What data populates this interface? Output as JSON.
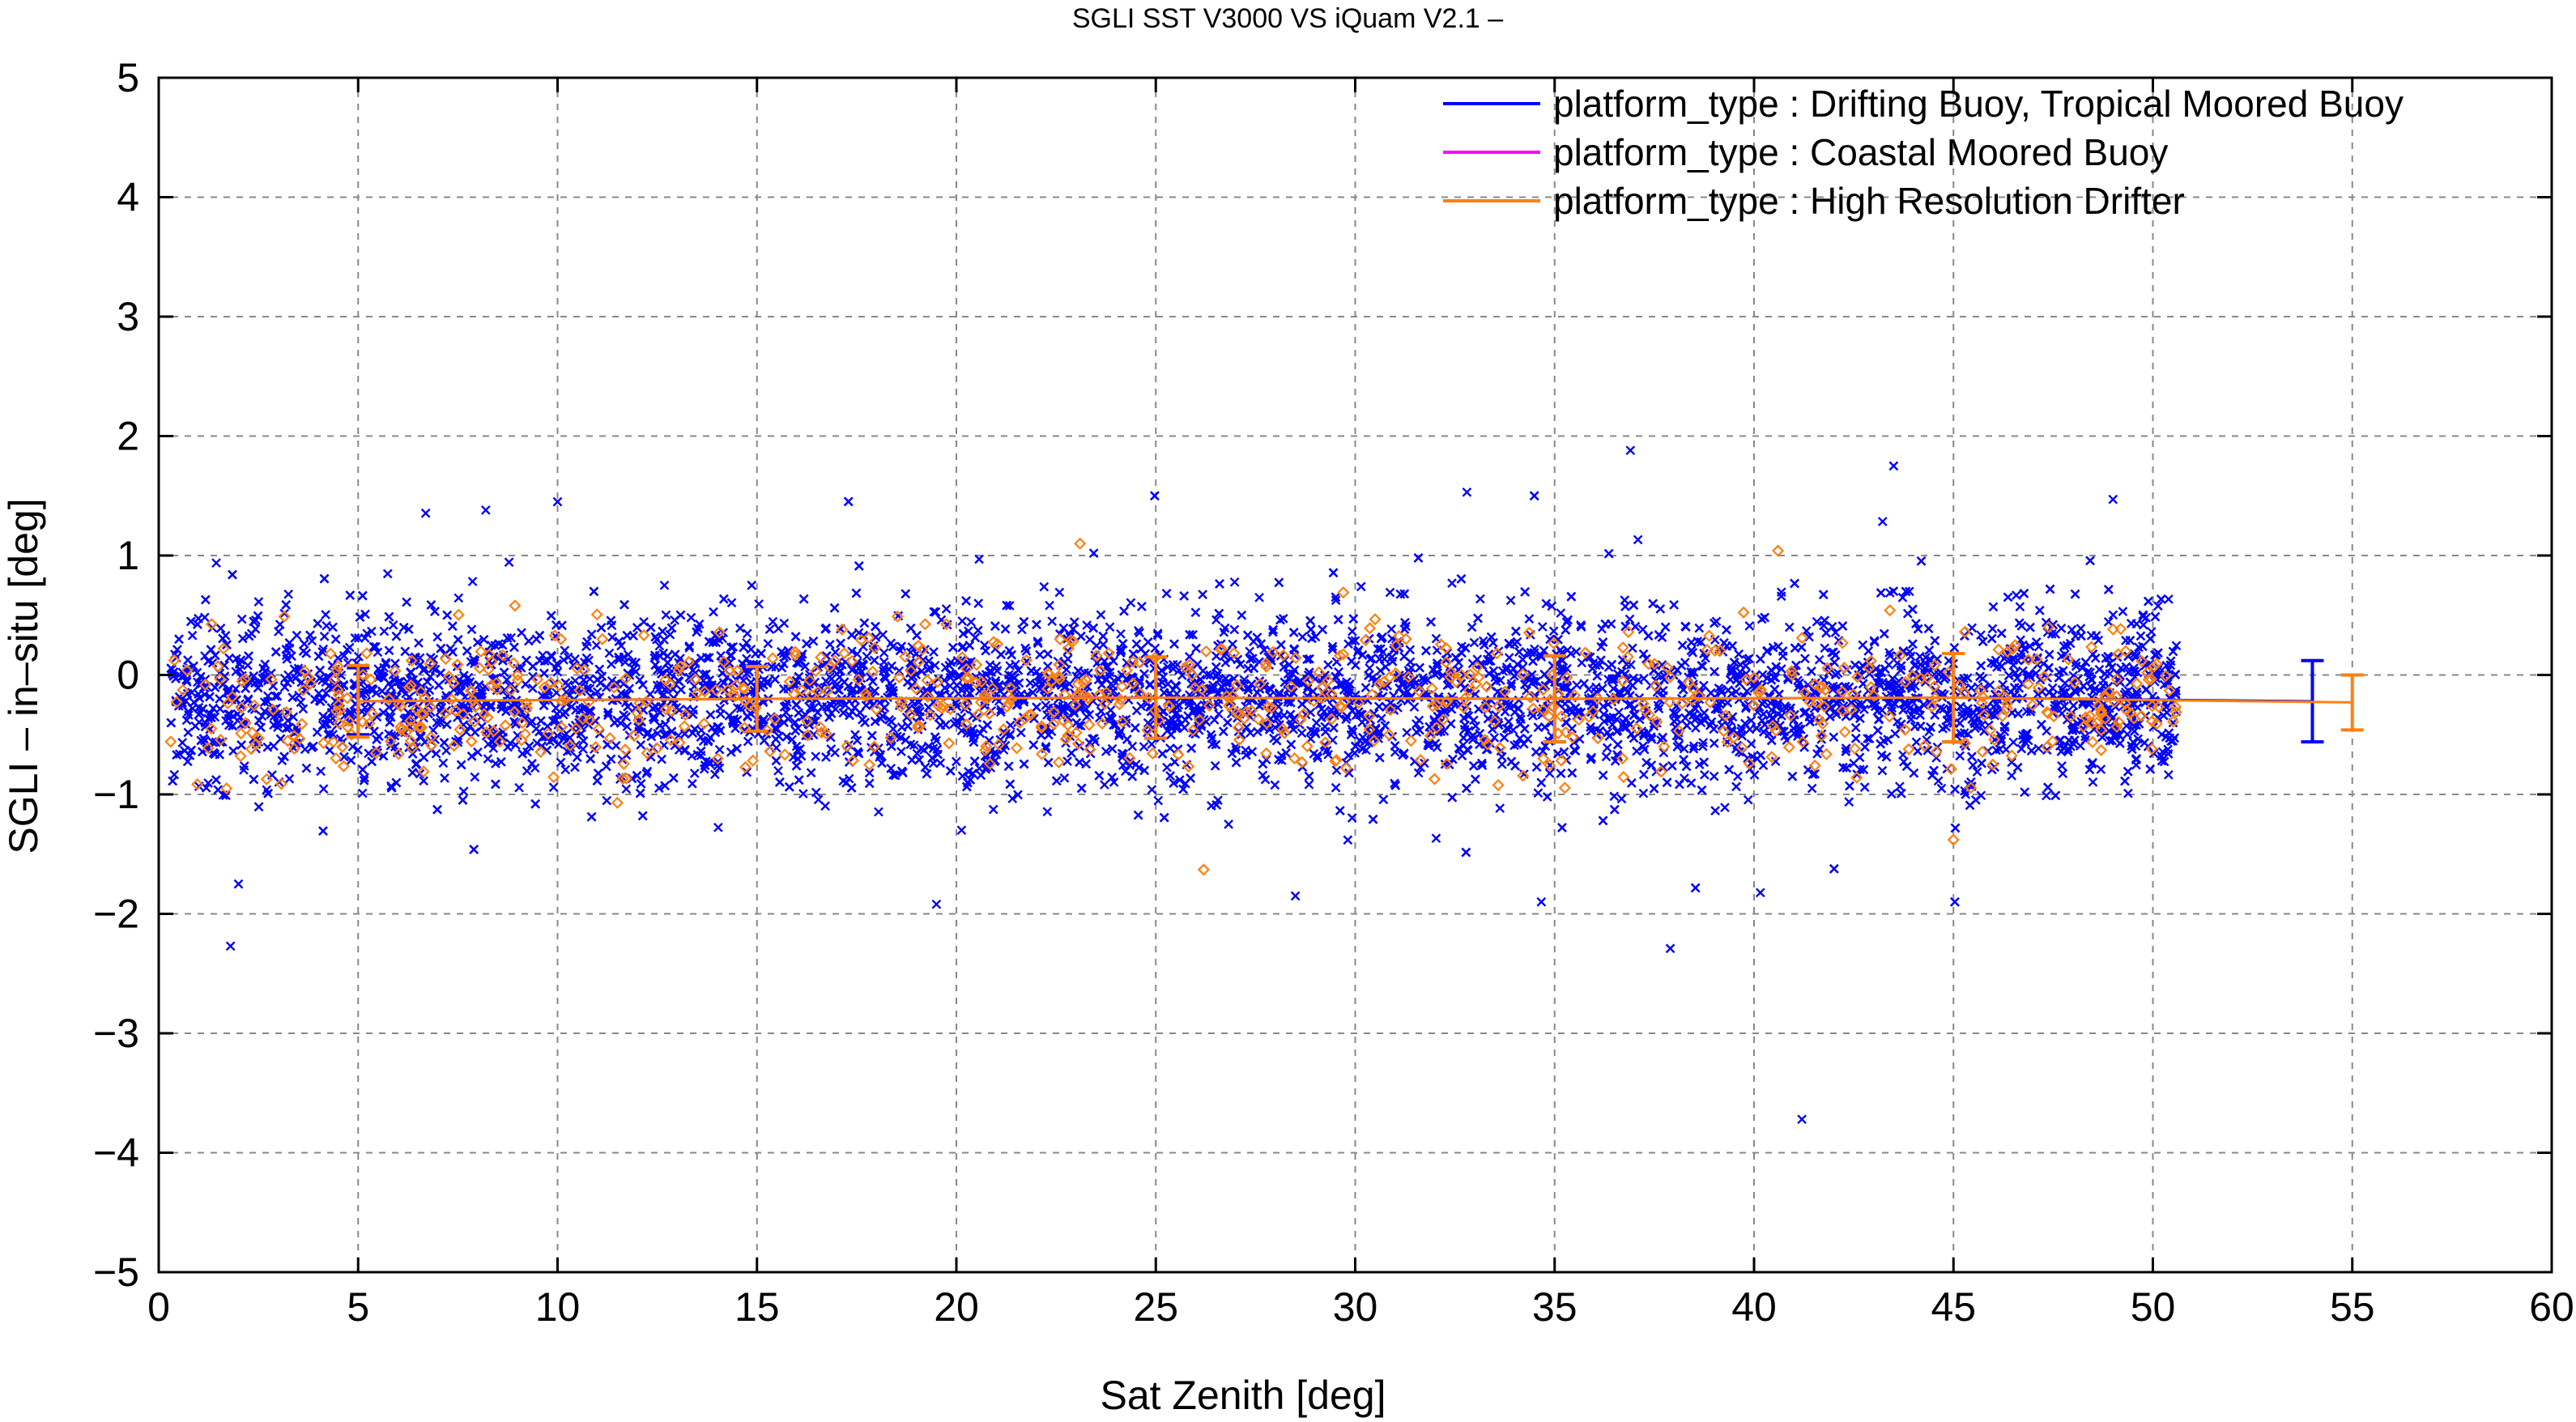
{
  "chart_data": {
    "type": "scatter",
    "title": "SGLI SST V3000 VS iQuam V2.1  –",
    "xlabel": "Sat Zenith [deg]",
    "ylabel": "SGLI – in–situ [deg]",
    "xlim": [
      0,
      60
    ],
    "ylim": [
      -5,
      5
    ],
    "x_ticks": [
      0,
      5,
      10,
      15,
      20,
      25,
      30,
      35,
      40,
      45,
      50,
      55,
      60
    ],
    "y_ticks": [
      -5,
      -4,
      -3,
      -2,
      -1,
      0,
      1,
      2,
      3,
      4,
      5
    ],
    "x_tick_labels": [
      "0",
      "5",
      "10",
      "15",
      "20",
      "25",
      "30",
      "35",
      "40",
      "45",
      "50",
      "55",
      "60"
    ],
    "y_tick_labels": [
      "−5",
      "−4",
      "−3",
      "−2",
      "−1",
      "0",
      "1",
      "2",
      "3",
      "4",
      "5"
    ],
    "grid": true,
    "legend_position": "top-right",
    "legend": [
      {
        "label": "platform_type : Drifting Buoy, Tropical Moored Buoy",
        "color": "#0000ff"
      },
      {
        "label": "platform_type : Coastal Moored Buoy",
        "color": "#ff00ff"
      },
      {
        "label": "platform_type : High Resolution Drifter",
        "color": "#ff7f0e"
      }
    ],
    "series": [
      {
        "name": "platform_type : Drifting Buoy, Tropical Moored Buoy",
        "color": "#0000ff",
        "marker": "x",
        "x_range": [
          0.3,
          50.6
        ],
        "approx_mean": -0.2,
        "approx_std": 0.35,
        "outliers": [
          {
            "x": 1.8,
            "y": -2.27
          },
          {
            "x": 2.0,
            "y": -1.75
          },
          {
            "x": 8.2,
            "y": 1.38
          },
          {
            "x": 10.0,
            "y": 1.45
          },
          {
            "x": 19.5,
            "y": -1.92
          },
          {
            "x": 28.5,
            "y": -1.85
          },
          {
            "x": 32.8,
            "y": 1.53
          },
          {
            "x": 36.9,
            "y": 1.88
          },
          {
            "x": 37.9,
            "y": -2.29
          },
          {
            "x": 43.5,
            "y": 1.75
          },
          {
            "x": 41.2,
            "y": -3.72
          },
          {
            "x": 49.0,
            "y": 1.47
          }
        ],
        "binned_mean": {
          "x": [
            5,
            15,
            25,
            35,
            45,
            54
          ],
          "mean": [
            -0.22,
            -0.2,
            -0.19,
            -0.2,
            -0.19,
            -0.22
          ],
          "std": [
            0.28,
            0.27,
            0.34,
            0.36,
            0.37,
            0.34
          ]
        }
      },
      {
        "name": "platform_type : Coastal Moored Buoy",
        "color": "#ff00ff",
        "marker": "o"
      },
      {
        "name": "platform_type : High Resolution Drifter",
        "color": "#ff7f0e",
        "marker": "diamond",
        "x_range": [
          0.3,
          50.6
        ],
        "approx_mean": -0.22,
        "approx_std": 0.3,
        "outliers": [
          {
            "x": 23.1,
            "y": 1.1
          },
          {
            "x": 26.2,
            "y": -1.63
          },
          {
            "x": 40.6,
            "y": 1.04
          },
          {
            "x": 45.0,
            "y": -1.38
          },
          {
            "x": 11.5,
            "y": -1.07
          },
          {
            "x": 1.7,
            "y": -0.95
          }
        ],
        "binned_mean": {
          "x": [
            5,
            15,
            25,
            35,
            45,
            55
          ],
          "mean": [
            -0.22,
            -0.2,
            -0.19,
            -0.2,
            -0.19,
            -0.23
          ],
          "std": [
            0.3,
            0.27,
            0.34,
            0.36,
            0.37,
            0.23
          ]
        }
      }
    ]
  }
}
